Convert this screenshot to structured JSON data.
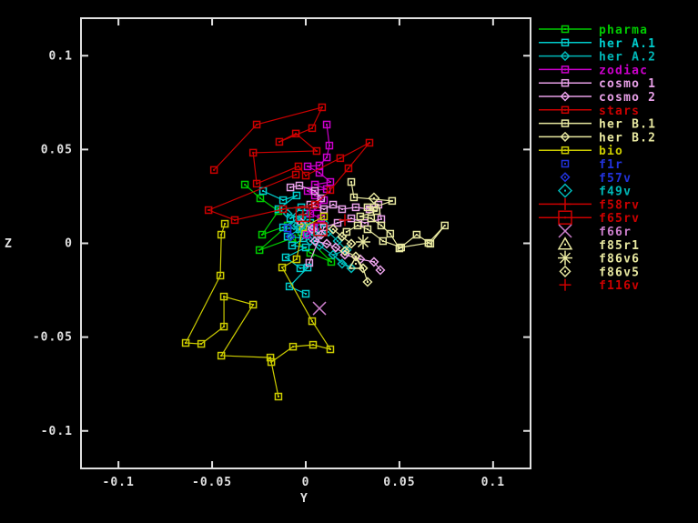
{
  "window": {
    "background": "#000000",
    "border_color": "#e0e0e0"
  },
  "axes": {
    "xlabel": "Y",
    "ylabel": "Z"
  },
  "chart_data": {
    "type": "scatter",
    "title": "",
    "xlabel": "Y",
    "ylabel": "Z",
    "xlim": [
      -0.12,
      0.12
    ],
    "ylim": [
      -0.12,
      0.12
    ],
    "grid": false,
    "legend_position": "right-outside-top",
    "xticks": {
      "values": [
        -0.1,
        -0.05,
        0,
        0.05,
        0.1
      ],
      "labels": [
        "-0.1",
        "-0.05",
        "0",
        "0.05",
        "0.1"
      ]
    },
    "yticks": {
      "values": [
        -0.1,
        -0.05,
        0,
        0.05,
        0.1
      ],
      "labels": [
        "-0.1",
        "-0.05",
        "0",
        "0.05",
        "0.1"
      ]
    },
    "series": [
      {
        "name": "pharma",
        "color": "#00cc00",
        "marker": "square",
        "line": true,
        "legend_line": true,
        "points": [
          [
            -0.0325,
            0.0313
          ],
          [
            -0.0243,
            0.024
          ],
          [
            -0.0146,
            0.0172
          ],
          [
            -0.0233,
            0.0046
          ],
          [
            -0.0097,
            0.0095
          ],
          [
            -0.0247,
            -0.0036
          ],
          [
            -0.0073,
            0.0027
          ],
          [
            0.0024,
            -0.0051
          ],
          [
            0.0136,
            -0.0099
          ],
          [
            -0.0024,
            0.0061
          ]
        ]
      },
      {
        "name": "her A.1",
        "color": "#00cdcd",
        "marker": "square",
        "line": true,
        "legend_line": true,
        "points": [
          [
            -0.0228,
            0.0279
          ],
          [
            -0.0121,
            0.023
          ],
          [
            -0.0049,
            0.0255
          ],
          [
            -0.0146,
            0.0182
          ],
          [
            -0.0024,
            0.0192
          ],
          [
            -0.0082,
            0.0133
          ],
          [
            0.0,
            0.0158
          ],
          [
            -0.0121,
            0.0085
          ],
          [
            -0.0034,
            0.0075
          ],
          [
            0.0024,
            0.0109
          ],
          [
            -0.0097,
            0.0036
          ],
          [
            -0.0015,
            0.0027
          ],
          [
            0.0049,
            0.0061
          ],
          [
            -0.0073,
            -0.0012
          ],
          [
            0.0,
            -0.0022
          ],
          [
            -0.0107,
            -0.0075
          ],
          [
            -0.0029,
            -0.0133
          ],
          [
            0.001,
            -0.0129
          ],
          [
            -0.0087,
            -0.023
          ],
          [
            0.0,
            -0.0269
          ]
        ]
      },
      {
        "name": "her A.2",
        "color": "#00b8b8",
        "marker": "diamond",
        "line": true,
        "legend_line": true,
        "points": [
          [
            -0.0097,
            0.0158
          ],
          [
            -0.0024,
            0.0133
          ],
          [
            0.0034,
            0.0085
          ],
          [
            0.0097,
            0.0109
          ],
          [
            0.0063,
            0.0036
          ],
          [
            0.0121,
            0.0061
          ],
          [
            0.017,
            0.0012
          ],
          [
            0.0218,
            -0.0036
          ],
          [
            0.0146,
            -0.0061
          ],
          [
            0.0194,
            -0.0109
          ],
          [
            0.0243,
            -0.0133
          ],
          [
            0.0073,
            -0.0012
          ],
          [
            0.0024,
            0.0012
          ],
          [
            -0.001,
            0.0061
          ],
          [
            -0.0063,
            0.0095
          ]
        ]
      },
      {
        "name": "zodiac",
        "color": "#cc00cc",
        "marker": "square",
        "line": true,
        "legend_line": true,
        "points": [
          [
            0.0112,
            0.0633
          ],
          [
            0.0126,
            0.0521
          ],
          [
            0.0112,
            0.0458
          ],
          [
            0.0073,
            0.0415
          ],
          [
            0.001,
            0.041
          ],
          [
            0.0073,
            0.0376
          ],
          [
            0.0131,
            0.0327
          ],
          [
            0.0049,
            0.0313
          ],
          [
            0.0112,
            0.0289
          ],
          [
            0.001,
            0.0279
          ],
          [
            0.0049,
            0.0255
          ],
          [
            0.0097,
            0.023
          ],
          [
            0.0063,
            0.0192
          ],
          [
            0.0024,
            0.0158
          ],
          [
            0.0082,
            0.0133
          ],
          [
            0.0044,
            0.0085
          ],
          [
            0.0005,
            0.0046
          ]
        ]
      },
      {
        "name": "cosmo 1",
        "color": "#e8a0e8",
        "marker": "square",
        "line": true,
        "legend_line": true,
        "points": [
          [
            -0.0082,
            0.0298
          ],
          [
            -0.0034,
            0.0308
          ],
          [
            0.0049,
            0.0279
          ],
          [
            0.0082,
            0.024
          ],
          [
            0.0024,
            0.0206
          ],
          [
            0.0097,
            0.0182
          ],
          [
            0.0146,
            0.0206
          ],
          [
            0.0194,
            0.0182
          ],
          [
            0.0267,
            0.0192
          ],
          [
            0.034,
            0.0182
          ],
          [
            0.0388,
            0.0206
          ],
          [
            0.0403,
            0.0129
          ],
          [
            0.0315,
            0.0109
          ],
          [
            0.0243,
            0.0133
          ],
          [
            0.017,
            0.0109
          ],
          [
            0.0097,
            0.0085
          ],
          [
            0.0019,
            -0.0104
          ]
        ]
      },
      {
        "name": "cosmo 2",
        "color": "#e8a0e8",
        "marker": "diamond",
        "line": true,
        "legend_line": true,
        "points": [
          [
            -0.0024,
            0.0109
          ],
          [
            0.0034,
            0.0075
          ],
          [
            0.0082,
            0.0046
          ],
          [
            0.0049,
            0.0012
          ],
          [
            0.0112,
            -0.0002
          ],
          [
            0.016,
            -0.0022
          ],
          [
            0.0209,
            -0.0061
          ],
          [
            0.0291,
            -0.0085
          ],
          [
            0.0364,
            -0.0099
          ],
          [
            0.0398,
            -0.0143
          ]
        ]
      },
      {
        "name": "stars",
        "color": "#cc0000",
        "marker": "square",
        "line": true,
        "legend_line": true,
        "points": [
          [
            -0.049,
            0.0391
          ],
          [
            -0.0262,
            0.0633
          ],
          [
            0.0087,
            0.0725
          ],
          [
            0.0034,
            0.0614
          ],
          [
            -0.0141,
            0.0541
          ],
          [
            -0.0053,
            0.0585
          ],
          [
            0.0058,
            0.0492
          ],
          [
            -0.0281,
            0.0483
          ],
          [
            -0.0262,
            0.0318
          ],
          [
            -0.0039,
            0.041
          ],
          [
            0.0,
            0.0361
          ],
          [
            0.0184,
            0.0454
          ],
          [
            0.034,
            0.0536
          ],
          [
            0.0228,
            0.04
          ],
          [
            0.0131,
            0.0284
          ],
          [
            0.0049,
            0.0206
          ],
          [
            -0.0121,
            0.0182
          ],
          [
            -0.0379,
            0.0124
          ],
          [
            -0.0519,
            0.0177
          ],
          [
            -0.0053,
            0.0366
          ]
        ]
      },
      {
        "name": "her B.1",
        "color": "#e8e8a0",
        "marker": "square",
        "line": true,
        "legend_line": true,
        "points": [
          [
            0.0243,
            0.0327
          ],
          [
            0.0257,
            0.0245
          ],
          [
            0.0461,
            0.0226
          ],
          [
            0.0364,
            0.0192
          ],
          [
            0.033,
            0.0192
          ],
          [
            0.0378,
            0.0172
          ],
          [
            0.0291,
            0.0143
          ],
          [
            0.0349,
            0.0133
          ],
          [
            0.0403,
            0.0095
          ],
          [
            0.0451,
            0.0051
          ],
          [
            0.05,
            -0.0027
          ],
          [
            0.0592,
            0.0046
          ],
          [
            0.0665,
            -0.0002
          ],
          [
            0.0742,
            0.0095
          ],
          [
            0.0655,
            0.0002
          ],
          [
            0.0509,
            -0.0022
          ],
          [
            0.0412,
            0.0012
          ],
          [
            0.033,
            0.0075
          ],
          [
            0.0277,
            0.0095
          ],
          [
            0.0218,
            0.0061
          ]
        ]
      },
      {
        "name": "her B.2",
        "color": "#e8e8a0",
        "marker": "diamond",
        "line": true,
        "legend_line": true,
        "points": [
          [
            0.0146,
            0.0075
          ],
          [
            0.0194,
            0.0036
          ],
          [
            0.0243,
            -0.0002
          ],
          [
            0.0209,
            -0.0041
          ],
          [
            0.0267,
            -0.007
          ],
          [
            0.0306,
            -0.0133
          ],
          [
            0.033,
            -0.0206
          ]
        ]
      },
      {
        "name": "bio",
        "color": "#cccc00",
        "marker": "square",
        "line": true,
        "legend_line": true,
        "points": [
          [
            -0.0432,
            0.0104
          ],
          [
            -0.0451,
            0.0046
          ],
          [
            -0.0456,
            -0.0172
          ],
          [
            -0.0641,
            -0.0531
          ],
          [
            -0.0558,
            -0.0536
          ],
          [
            -0.0437,
            -0.0444
          ],
          [
            -0.0437,
            -0.0284
          ],
          [
            -0.0281,
            -0.0327
          ],
          [
            -0.0451,
            -0.0599
          ],
          [
            -0.0189,
            -0.0609
          ],
          [
            -0.0146,
            -0.0817
          ],
          [
            -0.0184,
            -0.0633
          ],
          [
            -0.0068,
            -0.0551
          ],
          [
            0.0039,
            -0.0541
          ],
          [
            0.0131,
            -0.0565
          ],
          [
            0.0034,
            -0.0415
          ],
          [
            -0.0126,
            -0.0129
          ],
          [
            -0.0049,
            -0.0085
          ],
          [
            -0.0015,
            0.0085
          ],
          [
            0.0097,
            0.0143
          ]
        ]
      },
      {
        "name": "f1r",
        "color": "#2233dd",
        "marker": "square",
        "line": false,
        "legend_line": false,
        "points": [
          [
            -0.0097,
            0.008
          ]
        ]
      },
      {
        "name": "f57v",
        "color": "#2233dd",
        "marker": "diamond",
        "line": false,
        "legend_line": false,
        "points": [
          [
            -0.0082,
            0.0036
          ]
        ]
      },
      {
        "name": "f49v",
        "color": "#00b8b8",
        "marker": "big-diamond",
        "line": false,
        "legend_line": false,
        "points": [
          [
            -0.0034,
            0.0095
          ]
        ]
      },
      {
        "name": "f58rv",
        "color": "#cc0000",
        "marker": "boxed-plus",
        "legend_marker": "plus",
        "line": false,
        "legend_line": true,
        "points": [
          [
            -0.0015,
            0.0153
          ]
        ]
      },
      {
        "name": "f65rv",
        "color": "#cc0000",
        "marker": "big-square",
        "line": false,
        "legend_line": true,
        "points": [
          [
            0.0078,
            0.0075
          ]
        ]
      },
      {
        "name": "f66r",
        "color": "#cc7fcc",
        "marker": "x",
        "line": false,
        "legend_line": false,
        "points": [
          [
            0.0073,
            -0.0347
          ]
        ]
      },
      {
        "name": "f85r1",
        "color": "#e8e8a0",
        "marker": "triangle-dot",
        "line": false,
        "legend_line": false,
        "points": [
          [
            0.0267,
            -0.0109
          ]
        ]
      },
      {
        "name": "f86v6",
        "color": "#e8e8a0",
        "marker": "asterisk",
        "line": false,
        "legend_line": false,
        "points": [
          [
            0.0306,
            0.0007
          ]
        ]
      },
      {
        "name": "f86v5",
        "color": "#e8e8a0",
        "marker": "diamond-dot",
        "line": false,
        "legend_line": false,
        "points": [
          [
            0.0364,
            0.024
          ]
        ]
      },
      {
        "name": "f116v",
        "color": "#cc0000",
        "marker": "plus",
        "line": false,
        "legend_line": false,
        "points": [
          [
            0.0209,
            0.0124
          ]
        ]
      }
    ]
  }
}
